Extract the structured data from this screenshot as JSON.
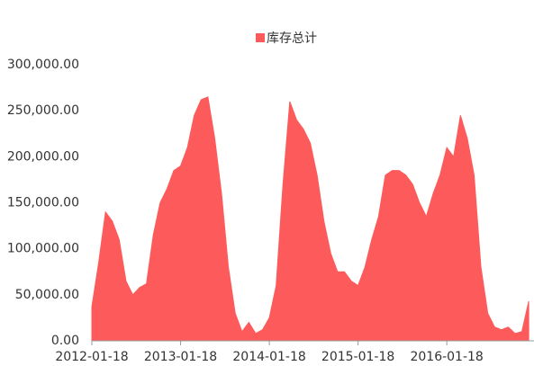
{
  "chart_data": {
    "type": "area",
    "categories": [
      "2012-01-18",
      null,
      null,
      null,
      null,
      null,
      null,
      null,
      null,
      null,
      null,
      null,
      null,
      "2013-01-18",
      null,
      null,
      null,
      null,
      null,
      null,
      null,
      null,
      null,
      null,
      null,
      null,
      "2014-01-18",
      null,
      null,
      null,
      null,
      null,
      null,
      null,
      null,
      null,
      null,
      null,
      null,
      "2015-01-18",
      null,
      null,
      null,
      null,
      null,
      null,
      null,
      null,
      null,
      null,
      null,
      null,
      "2016-01-18",
      null,
      null,
      null,
      null,
      null,
      null,
      null,
      null,
      null,
      null,
      null,
      null
    ],
    "series": [
      {
        "name": "库存总计",
        "color": "#fd5b5b",
        "values": [
          37000,
          85000,
          140000,
          130000,
          110000,
          65000,
          50000,
          58000,
          62000,
          115000,
          150000,
          165000,
          185000,
          190000,
          210000,
          245000,
          262000,
          265000,
          220000,
          160000,
          80000,
          30000,
          10000,
          20000,
          8000,
          12000,
          25000,
          60000,
          170000,
          260000,
          240000,
          230000,
          215000,
          180000,
          130000,
          95000,
          75000,
          75000,
          65000,
          60000,
          80000,
          110000,
          135000,
          180000,
          185000,
          185000,
          180000,
          170000,
          150000,
          135000,
          160000,
          180000,
          210000,
          200000,
          245000,
          220000,
          180000,
          80000,
          30000,
          15000,
          12000,
          15000,
          8000,
          10000,
          43000
        ]
      }
    ],
    "ylim": [
      0,
      300000
    ],
    "yticks": [
      {
        "value": 0,
        "label": "0.00"
      },
      {
        "value": 50000,
        "label": "50,000.00"
      },
      {
        "value": 100000,
        "label": "100,000.00"
      },
      {
        "value": 150000,
        "label": "150,000.00"
      },
      {
        "value": 200000,
        "label": "200,000.00"
      },
      {
        "value": 250000,
        "label": "250,000.00"
      },
      {
        "value": 300000,
        "label": "300,000.00"
      }
    ],
    "legend": "top"
  }
}
